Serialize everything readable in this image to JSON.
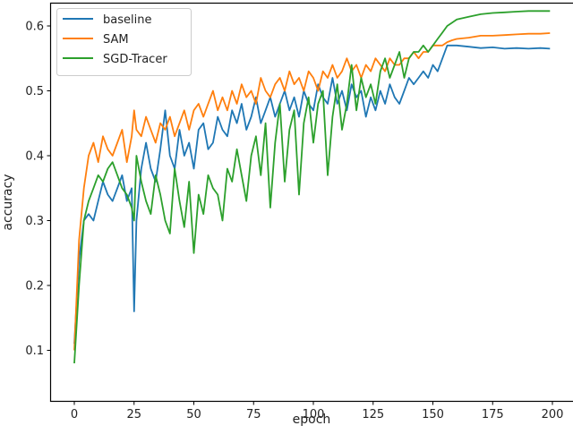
{
  "chart_data": {
    "type": "line",
    "title": "",
    "xlabel": "epoch",
    "ylabel": "accuracy",
    "xlim": [
      -10,
      210
    ],
    "ylim": [
      0.06,
      0.645
    ],
    "xticks": [
      0,
      25,
      50,
      75,
      100,
      125,
      150,
      175,
      200
    ],
    "yticks": [
      0.1,
      0.2,
      0.3,
      0.4,
      0.5,
      0.6
    ],
    "ytick_labels": [
      "0.1",
      "0.2",
      "0.3",
      "0.4",
      "0.5",
      "0.6"
    ],
    "grid": false,
    "legend_position": "upper left",
    "x": [
      0,
      2,
      4,
      6,
      8,
      10,
      12,
      14,
      16,
      18,
      20,
      22,
      24,
      25,
      26,
      28,
      30,
      32,
      34,
      36,
      38,
      40,
      42,
      44,
      46,
      48,
      50,
      52,
      54,
      56,
      58,
      60,
      62,
      64,
      66,
      68,
      70,
      72,
      74,
      76,
      78,
      80,
      82,
      84,
      86,
      88,
      90,
      92,
      94,
      96,
      98,
      100,
      102,
      104,
      106,
      108,
      110,
      112,
      114,
      116,
      118,
      120,
      122,
      124,
      126,
      128,
      130,
      132,
      134,
      136,
      138,
      140,
      142,
      144,
      146,
      148,
      150,
      152,
      154,
      156,
      158,
      160,
      165,
      170,
      175,
      180,
      185,
      190,
      195,
      199
    ],
    "series": [
      {
        "name": "baseline",
        "color": "#1f77b4",
        "values": [
          0.11,
          0.24,
          0.3,
          0.31,
          0.3,
          0.33,
          0.36,
          0.34,
          0.33,
          0.35,
          0.37,
          0.33,
          0.35,
          0.16,
          0.3,
          0.38,
          0.42,
          0.38,
          0.36,
          0.41,
          0.47,
          0.4,
          0.38,
          0.44,
          0.4,
          0.42,
          0.38,
          0.44,
          0.45,
          0.41,
          0.42,
          0.46,
          0.44,
          0.43,
          0.47,
          0.45,
          0.48,
          0.44,
          0.46,
          0.49,
          0.45,
          0.47,
          0.49,
          0.46,
          0.48,
          0.5,
          0.47,
          0.49,
          0.46,
          0.5,
          0.48,
          0.47,
          0.51,
          0.49,
          0.48,
          0.52,
          0.48,
          0.5,
          0.47,
          0.51,
          0.49,
          0.5,
          0.46,
          0.49,
          0.47,
          0.5,
          0.48,
          0.51,
          0.49,
          0.48,
          0.5,
          0.52,
          0.51,
          0.52,
          0.53,
          0.52,
          0.54,
          0.53,
          0.55,
          0.57,
          0.57,
          0.57,
          0.568,
          0.566,
          0.567,
          0.565,
          0.566,
          0.565,
          0.566,
          0.565
        ]
      },
      {
        "name": "SAM",
        "color": "#ff7f0e",
        "values": [
          0.1,
          0.27,
          0.35,
          0.4,
          0.42,
          0.39,
          0.43,
          0.41,
          0.4,
          0.42,
          0.44,
          0.39,
          0.43,
          0.47,
          0.44,
          0.43,
          0.46,
          0.44,
          0.42,
          0.45,
          0.44,
          0.46,
          0.43,
          0.45,
          0.47,
          0.44,
          0.47,
          0.48,
          0.46,
          0.48,
          0.5,
          0.47,
          0.49,
          0.47,
          0.5,
          0.48,
          0.51,
          0.49,
          0.5,
          0.48,
          0.52,
          0.5,
          0.49,
          0.51,
          0.52,
          0.5,
          0.53,
          0.51,
          0.52,
          0.5,
          0.53,
          0.52,
          0.5,
          0.53,
          0.52,
          0.54,
          0.52,
          0.53,
          0.55,
          0.53,
          0.54,
          0.52,
          0.54,
          0.53,
          0.55,
          0.54,
          0.53,
          0.55,
          0.54,
          0.54,
          0.55,
          0.55,
          0.56,
          0.55,
          0.56,
          0.56,
          0.57,
          0.57,
          0.57,
          0.575,
          0.578,
          0.58,
          0.582,
          0.585,
          0.585,
          0.586,
          0.587,
          0.588,
          0.588,
          0.589
        ]
      },
      {
        "name": "SGD-Tracer",
        "color": "#2ca02c",
        "values": [
          0.08,
          0.2,
          0.3,
          0.33,
          0.35,
          0.37,
          0.36,
          0.38,
          0.39,
          0.37,
          0.35,
          0.34,
          0.32,
          0.3,
          0.4,
          0.36,
          0.33,
          0.31,
          0.37,
          0.34,
          0.3,
          0.28,
          0.38,
          0.33,
          0.29,
          0.36,
          0.25,
          0.34,
          0.31,
          0.37,
          0.35,
          0.34,
          0.3,
          0.38,
          0.36,
          0.41,
          0.37,
          0.33,
          0.4,
          0.43,
          0.37,
          0.45,
          0.32,
          0.42,
          0.48,
          0.36,
          0.44,
          0.47,
          0.34,
          0.45,
          0.49,
          0.42,
          0.48,
          0.5,
          0.37,
          0.46,
          0.51,
          0.44,
          0.48,
          0.54,
          0.47,
          0.52,
          0.49,
          0.51,
          0.48,
          0.53,
          0.55,
          0.52,
          0.54,
          0.56,
          0.52,
          0.55,
          0.56,
          0.56,
          0.57,
          0.56,
          0.57,
          0.58,
          0.59,
          0.6,
          0.605,
          0.61,
          0.614,
          0.618,
          0.62,
          0.621,
          0.622,
          0.623,
          0.623,
          0.623
        ]
      }
    ]
  },
  "legend": {
    "items": [
      {
        "label": "baseline",
        "color": "#1f77b4"
      },
      {
        "label": "SAM",
        "color": "#ff7f0e"
      },
      {
        "label": "SGD-Tracer",
        "color": "#2ca02c"
      }
    ]
  }
}
